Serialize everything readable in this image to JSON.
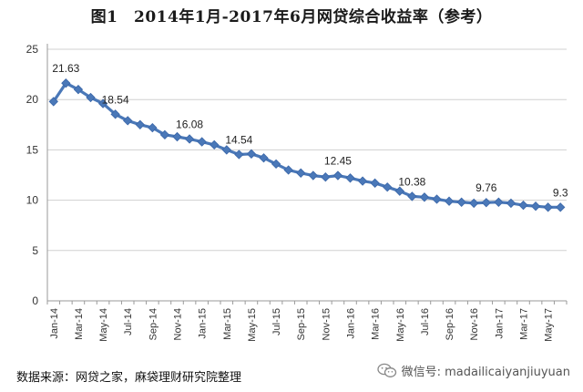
{
  "chart_data": {
    "type": "line",
    "title": "图1　2014年1月-2017年6月网贷综合收益率（参考）",
    "xlabel": "",
    "ylabel": "",
    "ylim": [
      0,
      25
    ],
    "yticks": [
      0,
      5,
      10,
      15,
      20,
      25
    ],
    "grid": true,
    "x_tick_labels": [
      "Jan-14",
      "Mar-14",
      "May-14",
      "Jul-14",
      "Sep-14",
      "Nov-14",
      "Jan-15",
      "Mar-15",
      "May-15",
      "Jul-15",
      "Sep-15",
      "Nov-15",
      "Jan-16",
      "Mar-16",
      "May-16",
      "Jul-16",
      "Sep-16",
      "Nov-16",
      "Jan-17",
      "Mar-17",
      "May-17"
    ],
    "x": [
      "Jan-14",
      "Feb-14",
      "Mar-14",
      "Apr-14",
      "May-14",
      "Jun-14",
      "Jul-14",
      "Aug-14",
      "Sep-14",
      "Oct-14",
      "Nov-14",
      "Dec-14",
      "Jan-15",
      "Feb-15",
      "Mar-15",
      "Apr-15",
      "May-15",
      "Jun-15",
      "Jul-15",
      "Aug-15",
      "Sep-15",
      "Oct-15",
      "Nov-15",
      "Dec-15",
      "Jan-16",
      "Feb-16",
      "Mar-16",
      "Apr-16",
      "May-16",
      "Jun-16",
      "Jul-16",
      "Aug-16",
      "Sep-16",
      "Oct-16",
      "Nov-16",
      "Dec-16",
      "Jan-17",
      "Feb-17",
      "Mar-17",
      "Apr-17",
      "May-17",
      "Jun-17"
    ],
    "series": [
      {
        "name": "",
        "color": "#4a78b8",
        "values": [
          19.8,
          21.63,
          21.0,
          20.2,
          19.6,
          18.54,
          17.9,
          17.5,
          17.2,
          16.5,
          16.3,
          16.08,
          15.8,
          15.5,
          15.0,
          14.54,
          14.6,
          14.2,
          13.6,
          13.0,
          12.7,
          12.45,
          12.3,
          12.45,
          12.2,
          11.9,
          11.7,
          11.3,
          10.9,
          10.38,
          10.3,
          10.1,
          9.9,
          9.8,
          9.7,
          9.76,
          9.8,
          9.7,
          9.5,
          9.4,
          9.3,
          9.3
        ]
      }
    ],
    "data_labels": [
      {
        "index": 1,
        "text": "21.63"
      },
      {
        "index": 5,
        "text": "18.54"
      },
      {
        "index": 11,
        "text": "16.08"
      },
      {
        "index": 15,
        "text": "14.54"
      },
      {
        "index": 23,
        "text": "12.45"
      },
      {
        "index": 29,
        "text": "10.38"
      },
      {
        "index": 35,
        "text": "9.76"
      },
      {
        "index": 41,
        "text": "9.3"
      }
    ]
  },
  "footer": {
    "source": "数据来源：网贷之家，麻袋理财研究院整理",
    "watermark": "微信号: madailicaiyanjiuyuan"
  }
}
